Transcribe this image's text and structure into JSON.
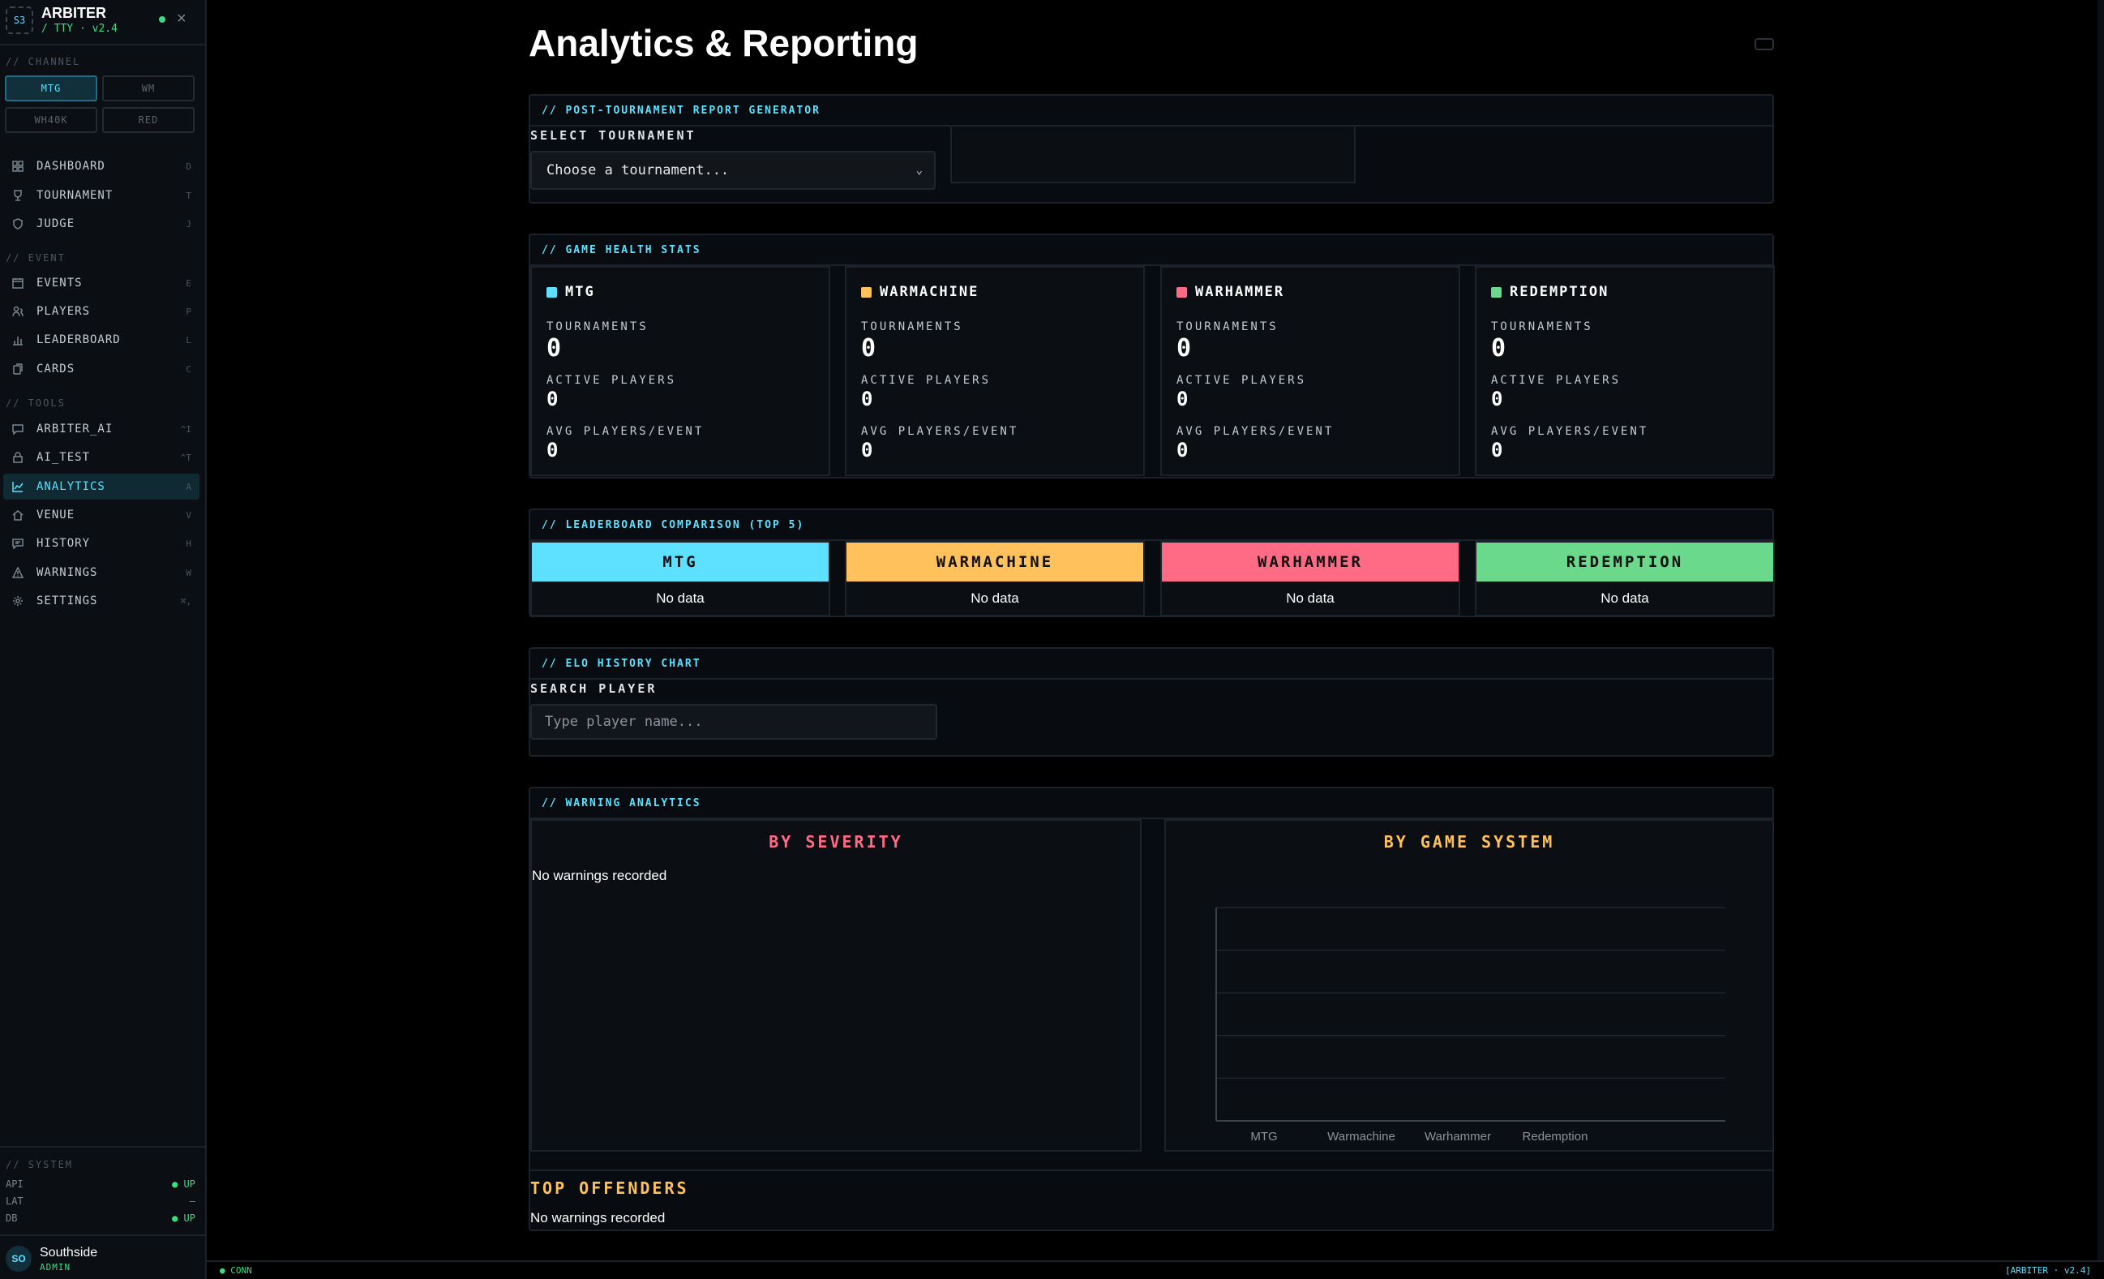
{
  "brand": {
    "logo": "S3",
    "name": "ARBITER",
    "sub": "/ TTY · v2.4"
  },
  "sidebar": {
    "channel_label": "// CHANNEL",
    "channels": [
      {
        "label": "MTG",
        "active": true
      },
      {
        "label": "WM"
      },
      {
        "label": "WH40K"
      },
      {
        "label": "RED"
      }
    ],
    "main": [
      {
        "label": "DASHBOARD",
        "key": "D",
        "icon": "grid-icon"
      },
      {
        "label": "TOURNAMENT",
        "key": "T",
        "icon": "trophy-icon"
      },
      {
        "label": "JUDGE",
        "key": "J",
        "icon": "shield-icon"
      }
    ],
    "event_label": "// EVENT",
    "event": [
      {
        "label": "EVENTS",
        "key": "E",
        "icon": "calendar-icon"
      },
      {
        "label": "PLAYERS",
        "key": "P",
        "icon": "users-icon"
      },
      {
        "label": "LEADERBOARD",
        "key": "L",
        "icon": "bar-chart-icon"
      },
      {
        "label": "CARDS",
        "key": "C",
        "icon": "cards-icon"
      }
    ],
    "tools_label": "// TOOLS",
    "tools": [
      {
        "label": "ARBITER_AI",
        "key": "^I",
        "icon": "chat-icon"
      },
      {
        "label": "AI_TEST",
        "key": "^T",
        "icon": "lock-icon"
      },
      {
        "label": "ANALYTICS",
        "key": "A",
        "icon": "line-chart-icon",
        "active": true
      },
      {
        "label": "VENUE",
        "key": "V",
        "icon": "home-icon"
      },
      {
        "label": "HISTORY",
        "key": "H",
        "icon": "history-icon"
      },
      {
        "label": "WARNINGS",
        "key": "W",
        "icon": "warning-icon"
      },
      {
        "label": "SETTINGS",
        "key": "⌘,",
        "icon": "gear-icon"
      }
    ],
    "system_label": "// SYSTEM",
    "system": [
      {
        "label": "API",
        "value": "● UP"
      },
      {
        "label": "LAT",
        "value": "—"
      },
      {
        "label": "DB",
        "value": "● UP"
      }
    ],
    "user": {
      "initials": "SO",
      "name": "Southside",
      "role": "ADMIN"
    }
  },
  "page": {
    "title": "Analytics & Reporting"
  },
  "report": {
    "header": "// POST-TOURNAMENT REPORT GENERATOR",
    "label": "SELECT TOURNAMENT",
    "select_value": "Choose a tournament..."
  },
  "health": {
    "header": "// GAME HEALTH STATS",
    "labels": {
      "tournaments": "TOURNAMENTS",
      "active": "ACTIVE PLAYERS",
      "avg": "AVG PLAYERS/EVENT"
    },
    "systems": [
      {
        "name": "MTG",
        "color": "#5de1ff",
        "tournaments": "0",
        "active": "0",
        "avg": "0"
      },
      {
        "name": "WARMACHINE",
        "color": "#ffc15c",
        "tournaments": "0",
        "active": "0",
        "avg": "0"
      },
      {
        "name": "WARHAMMER",
        "color": "#ff6b85",
        "tournaments": "0",
        "active": "0",
        "avg": "0"
      },
      {
        "name": "REDEMPTION",
        "color": "#6ad98c",
        "tournaments": "0",
        "active": "0",
        "avg": "0"
      }
    ]
  },
  "leaderboard": {
    "header": "// LEADERBOARD COMPARISON (TOP 5)",
    "columns": [
      {
        "name": "MTG",
        "color": "#5de1ff",
        "body": "No data"
      },
      {
        "name": "WARMACHINE",
        "color": "#ffc15c",
        "body": "No data"
      },
      {
        "name": "WARHAMMER",
        "color": "#ff6b85",
        "body": "No data"
      },
      {
        "name": "REDEMPTION",
        "color": "#6ad98c",
        "body": "No data"
      }
    ]
  },
  "elo": {
    "header": "// ELO HISTORY CHART",
    "label": "SEARCH PLAYER",
    "placeholder": "Type player name..."
  },
  "warnings": {
    "header": "// WARNING ANALYTICS",
    "severity_title": "BY SEVERITY",
    "severity_empty": "No warnings recorded",
    "system_title": "BY GAME SYSTEM",
    "offenders_title": "TOP OFFENDERS",
    "offenders_empty": "No warnings recorded"
  },
  "chart_data": {
    "type": "bar",
    "title": "BY GAME SYSTEM",
    "categories": [
      "MTG",
      "Warmachine",
      "Warhammer",
      "Redemption"
    ],
    "values": [
      0,
      0,
      0,
      0
    ],
    "grid": true
  },
  "footer": {
    "left": "● CONN",
    "right": "[ARBITER · v2.4]"
  },
  "colors": {
    "accent": "#5de1ff",
    "ok": "#3ddc84",
    "severity": "#ff6b85",
    "system": "#ffc15c"
  }
}
